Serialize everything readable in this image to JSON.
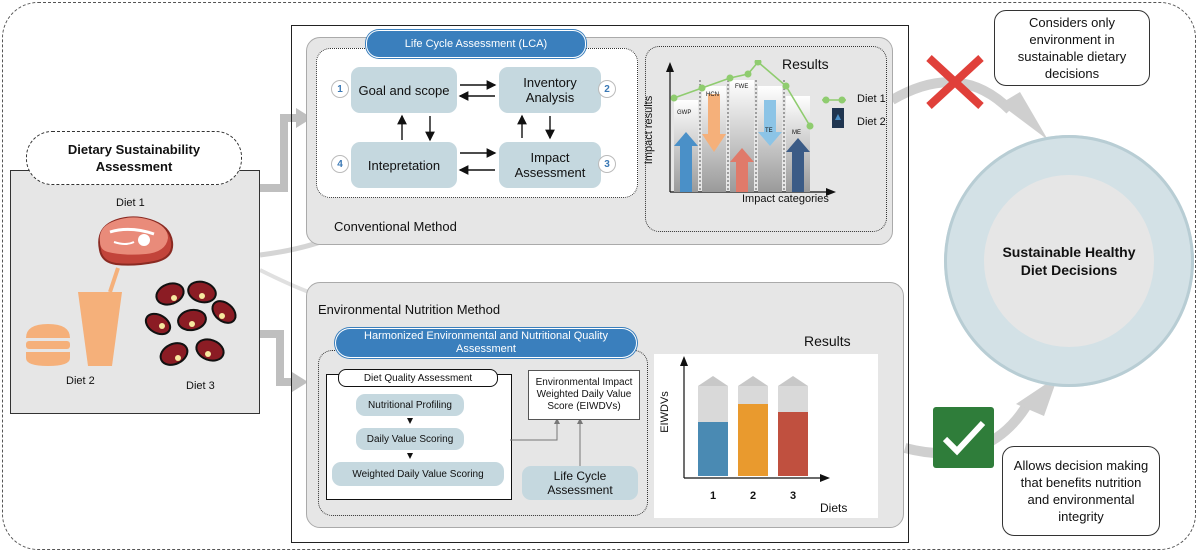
{
  "left_panel": {
    "title": "Dietary Sustainability Assessment",
    "diet1": "Diet 1",
    "diet2": "Diet 2",
    "diet3": "Diet 3"
  },
  "conventional": {
    "lca_label": "Life Cycle Assessment (LCA)",
    "method_label": "Conventional Method",
    "steps": [
      {
        "num": "1",
        "label": "Goal and scope"
      },
      {
        "num": "2",
        "label": "Inventory Analysis"
      },
      {
        "num": "3",
        "label": "Impact Assessment"
      },
      {
        "num": "4",
        "label": "Intepretation"
      }
    ],
    "results_title": "Results",
    "y_label": "Impact results",
    "x_label": "Impact categories",
    "categories": [
      "GWP",
      "HCN",
      "FWE",
      "TE",
      "ME"
    ],
    "legend": [
      "Diet 1",
      "Diet 2"
    ]
  },
  "nutrition": {
    "method_label": "Environmental Nutrition Method",
    "harmonized_label": "Harmonized  Environmental and Nutritional Quality Assessment",
    "dqa_label": "Diet Quality Assessment",
    "steps": [
      "Nutritional Profiling",
      "Daily Value Scoring",
      "Weighted Daily Value Scoring"
    ],
    "eiwdv_label": "Environmental Impact Weighted Daily Value Score (EIWDVs)",
    "lca_label": "Life Cycle Assessment",
    "results_title": "Results",
    "y_label": "EIWDVs",
    "x_label": "Diets",
    "diets": [
      "1",
      "2",
      "3"
    ]
  },
  "outcomes": {
    "considers_text": "Considers only environment in sustainable dietary decisions",
    "allows_text": "Allows decision making that benefits nutrition and environmental integrity",
    "decision_title": "Sustainable Healthy Diet Decisions"
  },
  "colors": {
    "panel_gray": "#e6e6e6",
    "pill_blue": "#c5d8df",
    "header_blue": "#3a7fbd",
    "red_cross": "#e0403a",
    "green_check": "#2f7d3a",
    "bar_blue": "#4a90c8",
    "bar_orange": "#f5b07a",
    "bar_red": "#e07a6a",
    "bar_navy": "#3b5b86",
    "line_green": "#8fcc6f"
  }
}
